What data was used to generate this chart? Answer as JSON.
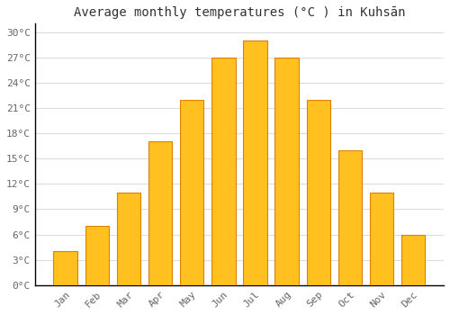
{
  "months": [
    "Jan",
    "Feb",
    "Mar",
    "Apr",
    "May",
    "Jun",
    "Jul",
    "Aug",
    "Sep",
    "Oct",
    "Nov",
    "Dec"
  ],
  "temperatures": [
    4,
    7,
    11,
    17,
    22,
    27,
    29,
    27,
    22,
    16,
    11,
    6
  ],
  "bar_color": "#FFC020",
  "bar_edge_color": "#E08000",
  "title": "Average monthly temperatures (°C ) in Kuhsān",
  "ylim": [
    0,
    31
  ],
  "yticks": [
    0,
    3,
    6,
    9,
    12,
    15,
    18,
    21,
    24,
    27,
    30
  ],
  "ytick_labels": [
    "0°C",
    "3°C",
    "6°C",
    "9°C",
    "12°C",
    "15°C",
    "18°C",
    "21°C",
    "24°C",
    "27°C",
    "30°C"
  ],
  "background_color": "#ffffff",
  "grid_color": "#dddddd",
  "title_fontsize": 10,
  "tick_fontsize": 8
}
